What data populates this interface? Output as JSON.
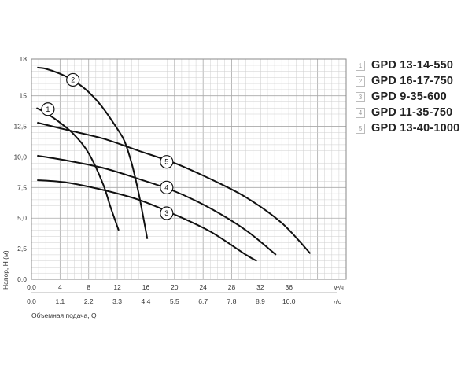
{
  "chart_data": {
    "type": "line",
    "xlabel": "Объемная подача, Q",
    "ylabel": "Напор, Н (м)",
    "x_unit_primary": "м³/ч",
    "x_unit_secondary": "л/с",
    "xlim": [
      0,
      44
    ],
    "ylim": [
      0,
      18
    ],
    "grid": true,
    "x_ticks": [
      "0,0",
      "4",
      "8",
      "12",
      "16",
      "20",
      "24",
      "28",
      "32",
      "36"
    ],
    "x_ticks_secondary": [
      "0,0",
      "1,1",
      "2,2",
      "3,3",
      "4,4",
      "5,5",
      "6,7",
      "7,8",
      "8,9",
      "10,0"
    ],
    "y_ticks": [
      "0,0",
      "2,5",
      "5,0",
      "7,5",
      "10,0",
      "12,5",
      "15",
      "18"
    ],
    "legend_position": "right",
    "series": [
      {
        "name": "GPD 13-14-550",
        "number": "1",
        "x": [
          0.7,
          2,
          4,
          6,
          8,
          10,
          11,
          12.2
        ],
        "y": [
          14.0,
          13.6,
          12.8,
          11.8,
          10.3,
          7.8,
          6.0,
          4.0
        ]
      },
      {
        "name": "GPD 16-17-750",
        "number": "2",
        "x": [
          0.8,
          2,
          4,
          6,
          8,
          10,
          12,
          13,
          14,
          15,
          16.2
        ],
        "y": [
          17.3,
          17.2,
          16.8,
          16.2,
          15.3,
          14.0,
          12.3,
          11.3,
          9.5,
          7.0,
          3.3
        ]
      },
      {
        "name": "GPD 9-35-600",
        "number": "3",
        "x": [
          0.8,
          5,
          10,
          15,
          20,
          25,
          30,
          31.5
        ],
        "y": [
          8.1,
          7.9,
          7.3,
          6.5,
          5.3,
          3.9,
          2.0,
          1.5
        ]
      },
      {
        "name": "GPD 11-35-750",
        "number": "4",
        "x": [
          0.8,
          5,
          10,
          15,
          20,
          25,
          30,
          34.2
        ],
        "y": [
          10.1,
          9.7,
          9.1,
          8.2,
          7.2,
          5.8,
          4.0,
          2.0
        ]
      },
      {
        "name": "GPD 13-40-1000",
        "number": "5",
        "x": [
          0.8,
          5,
          10,
          15,
          20,
          25,
          30,
          35,
          39
        ],
        "y": [
          12.8,
          12.2,
          11.5,
          10.5,
          9.5,
          8.2,
          6.7,
          4.6,
          2.1
        ]
      }
    ],
    "curve_labels": [
      {
        "number": "1",
        "x": 2.3,
        "y": 13.9
      },
      {
        "number": "2",
        "x": 5.8,
        "y": 16.3
      },
      {
        "number": "3",
        "x": 18.9,
        "y": 5.4
      },
      {
        "number": "4",
        "x": 18.9,
        "y": 7.5
      },
      {
        "number": "5",
        "x": 18.9,
        "y": 9.6
      }
    ]
  }
}
